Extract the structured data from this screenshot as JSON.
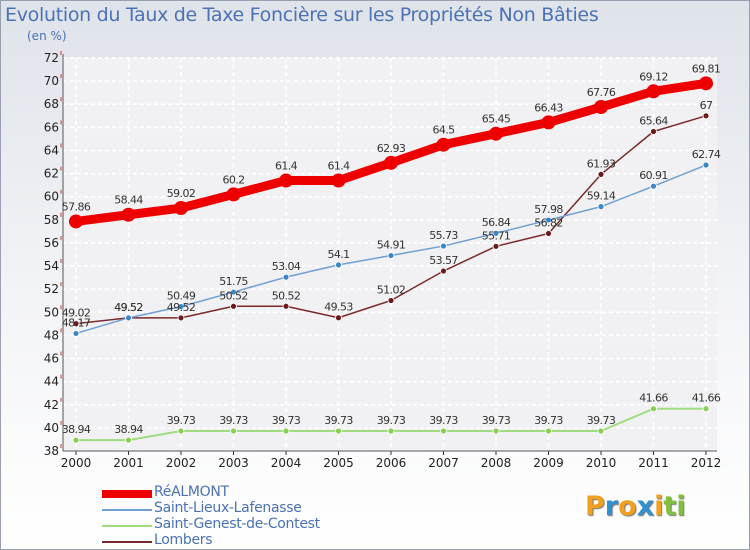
{
  "title": "Evolution du Taux de Taxe Foncière sur les Propriétés Non Bâties",
  "subtitle": "(en %)",
  "logo": {
    "letters": [
      "P",
      "r",
      "o",
      "x",
      "i",
      "t",
      "i"
    ],
    "colors": [
      "#f0a020",
      "#3090d0",
      "#f0a020",
      "#3090d0",
      "#f0a020",
      "#80c040",
      "#80c040"
    ]
  },
  "chart_data": {
    "type": "line",
    "categories": [
      "2000",
      "2001",
      "2002",
      "2003",
      "2004",
      "2005",
      "2006",
      "2007",
      "2008",
      "2009",
      "2010",
      "2011",
      "2012"
    ],
    "ylim": [
      38,
      72
    ],
    "yticks": [
      38,
      40,
      42,
      44,
      46,
      48,
      50,
      52,
      54,
      56,
      58,
      60,
      62,
      64,
      66,
      68,
      70,
      72
    ],
    "grid": true,
    "legend_position": "bottom-left",
    "series": [
      {
        "name": "RéALMONT",
        "color": "#ee0000",
        "line_width": 9,
        "marker_radius": 7,
        "values": [
          57.86,
          58.44,
          59.02,
          60.2,
          61.4,
          61.4,
          62.93,
          64.5,
          65.45,
          66.43,
          67.76,
          69.12,
          69.81
        ],
        "labels": [
          "57.86",
          "58.44",
          "59.02",
          "60.2",
          "61.4",
          "61.4",
          "62.93",
          "64.5",
          "65.45",
          "66.43",
          "67.76",
          "69.12",
          "69.81"
        ]
      },
      {
        "name": "Saint-Lieux-Lafenasse",
        "color": "#6f9fd4",
        "marker_fill": "#3a87c8",
        "line_width": 1.5,
        "marker_radius": 3,
        "values": [
          48.17,
          49.52,
          50.49,
          51.75,
          53.04,
          54.1,
          54.91,
          55.73,
          56.84,
          57.98,
          59.14,
          60.91,
          62.74
        ],
        "labels": [
          "48.17",
          "49.52",
          "50.49",
          "51.75",
          "53.04",
          "54.1",
          "54.91",
          "55.73",
          "56.84",
          "57.98",
          "59.14",
          "60.91",
          "62.74"
        ]
      },
      {
        "name": "Saint-Genest-de-Contest",
        "color": "#a0dc80",
        "marker_fill": "#8acd54",
        "line_width": 2,
        "marker_radius": 3,
        "values": [
          38.94,
          38.94,
          39.73,
          39.73,
          39.73,
          39.73,
          39.73,
          39.73,
          39.73,
          39.73,
          39.73,
          41.66,
          41.66
        ],
        "labels": [
          "38.94",
          "38.94",
          "39.73",
          "39.73",
          "39.73",
          "39.73",
          "39.73",
          "39.73",
          "39.73",
          "39.73",
          "39.73",
          "41.66",
          "41.66"
        ]
      },
      {
        "name": "Lombers",
        "color": "#7a2a2a",
        "marker_fill": "#6a1c1c",
        "line_width": 1.5,
        "marker_radius": 3,
        "values": [
          49.02,
          49.52,
          49.52,
          50.52,
          50.52,
          49.53,
          51.02,
          53.57,
          55.71,
          56.82,
          61.93,
          65.64,
          67
        ],
        "labels": [
          "49.02",
          "49.52",
          "49.52",
          "50.52",
          "50.52",
          "49.53",
          "51.02",
          "53.57",
          "55.71",
          "56.82",
          "61.93",
          "65.64",
          "67"
        ]
      }
    ]
  }
}
